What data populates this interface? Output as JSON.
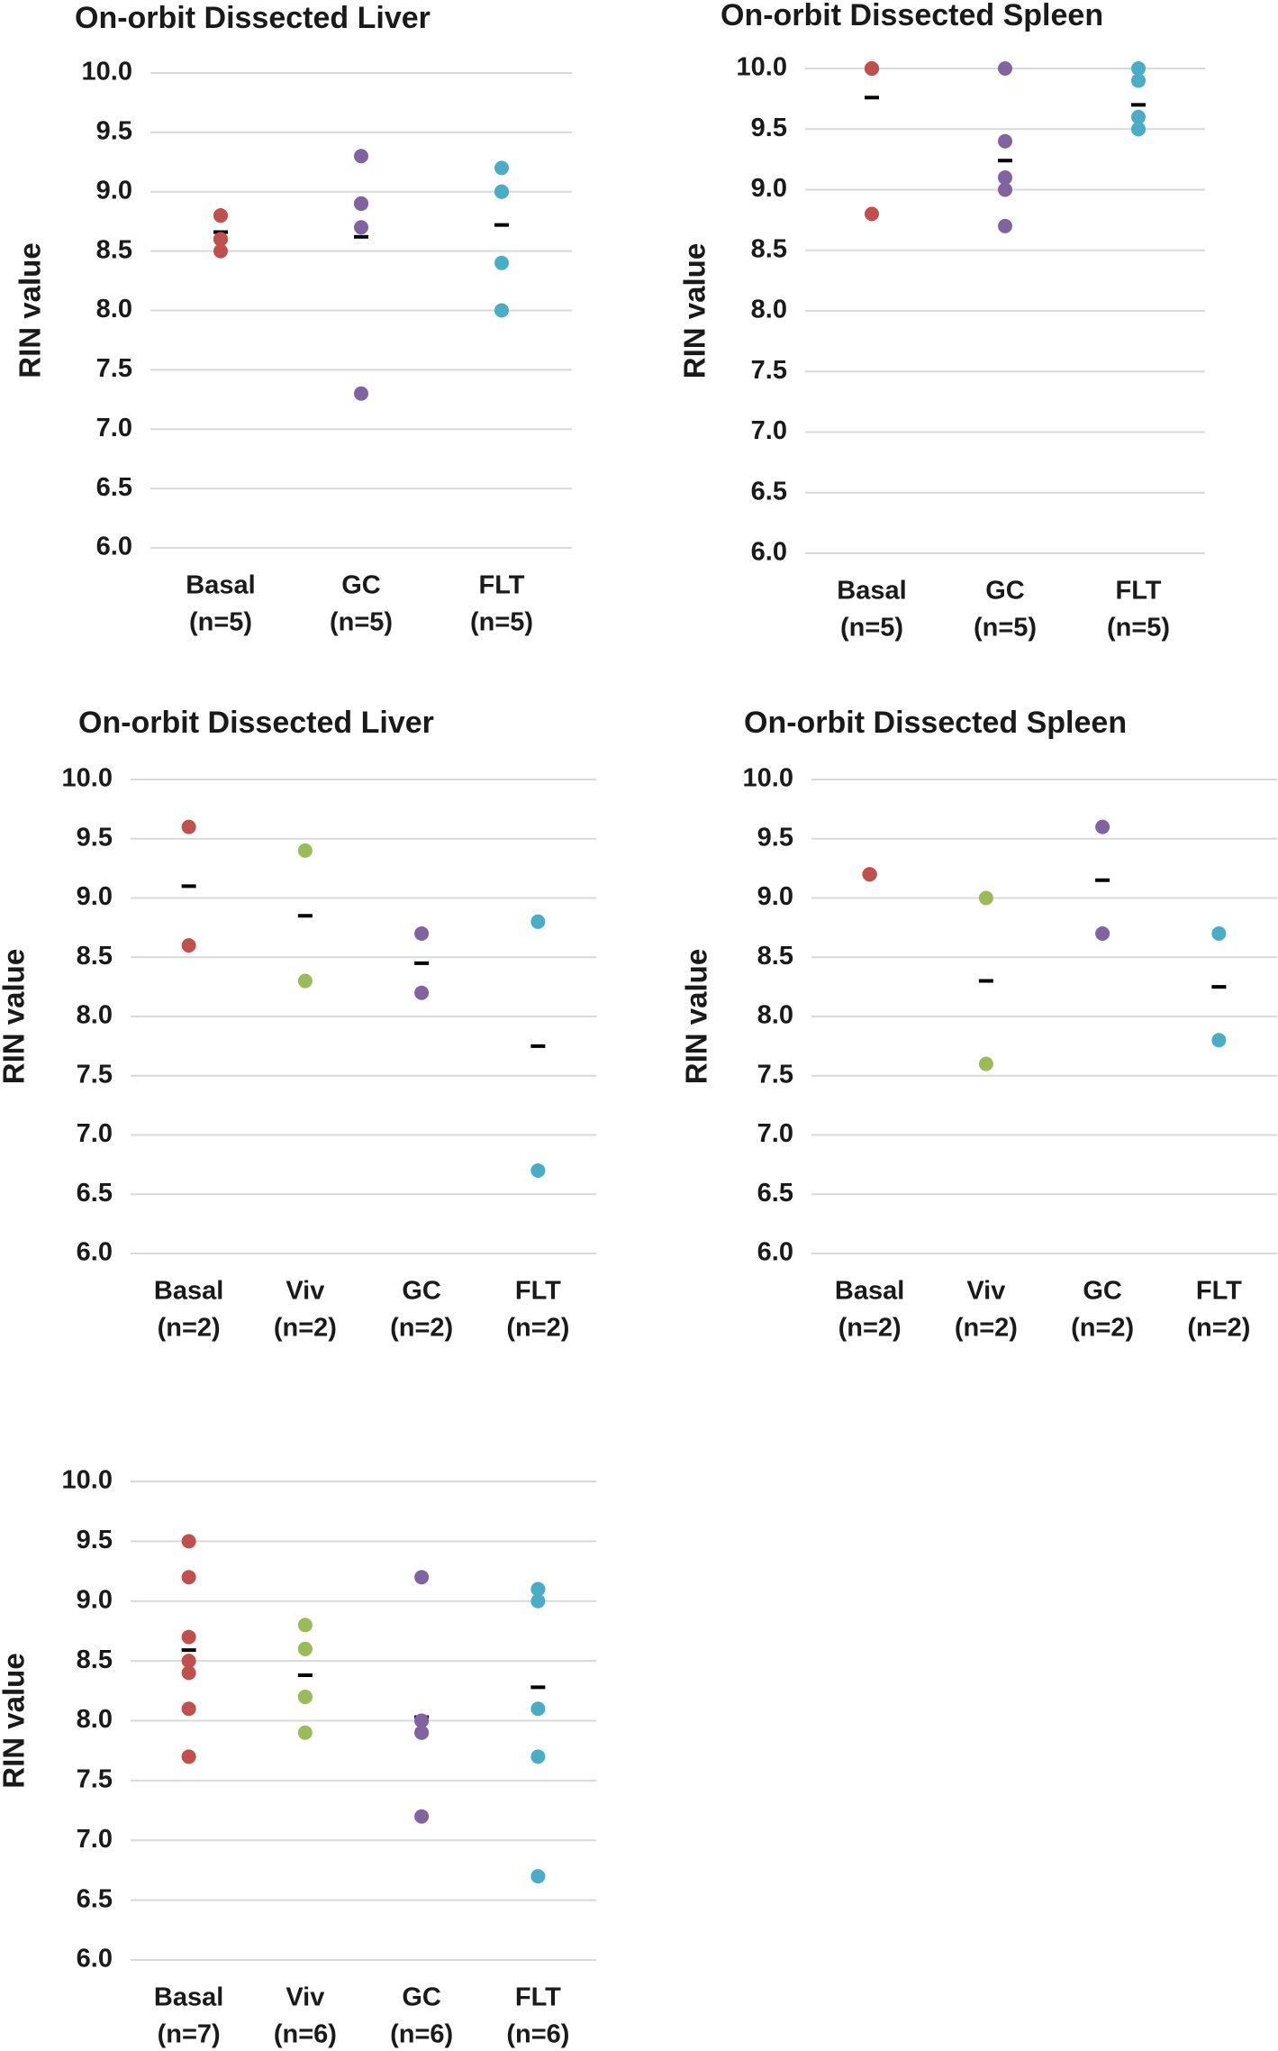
{
  "chart_data": [
    {
      "type": "strip",
      "title": "On-orbit Dissected Liver",
      "y_label": "RIN value",
      "ylim": [
        6.0,
        10.0
      ],
      "yticks": [
        {
          "value": 6.0,
          "label": "6.0"
        },
        6.5,
        {
          "value": 7.0,
          "label": "7.0"
        },
        7.5,
        {
          "value": 8.0,
          "label": "8.0"
        },
        8.5,
        {
          "value": 9.0,
          "label": "9.0"
        },
        9.5,
        {
          "value": 10.0,
          "label": "10.0"
        }
      ],
      "grid": true,
      "groups": [
        {
          "name": "Basal",
          "n_label": "(n=5)",
          "color": "#c0504d",
          "values": [
            8.8,
            8.8,
            8.6,
            8.6,
            8.5
          ],
          "mean": 8.66
        },
        {
          "name": "GC",
          "n_label": "(n=5)",
          "color": "#8064a2",
          "values": [
            9.3,
            8.9,
            8.9,
            8.7,
            7.3
          ],
          "mean": 8.62
        },
        {
          "name": "FLT",
          "n_label": "(n=5)",
          "color": "#4bacc6",
          "values": [
            9.2,
            9.0,
            9.0,
            8.4,
            8.0
          ],
          "mean": 8.72
        }
      ]
    },
    {
      "type": "strip",
      "title": "On-orbit Dissected Spleen",
      "y_label": "RIN value",
      "ylim": [
        6.0,
        10.0
      ],
      "yticks": [
        {
          "value": 6.0,
          "label": "6.0"
        },
        6.5,
        {
          "value": 7.0,
          "label": "7.0"
        },
        7.5,
        {
          "value": 8.0,
          "label": "8.0"
        },
        8.5,
        {
          "value": 9.0,
          "label": "9.0"
        },
        9.5,
        {
          "value": 10.0,
          "label": "10.0"
        }
      ],
      "grid": true,
      "groups": [
        {
          "name": "Basal",
          "n_label": "(n=5)",
          "color": "#c0504d",
          "values": [
            10.0,
            10.0,
            10.0,
            10.0,
            8.8
          ],
          "mean": 9.76
        },
        {
          "name": "GC",
          "n_label": "(n=5)",
          "color": "#8064a2",
          "values": [
            10.0,
            9.4,
            9.1,
            9.0,
            8.7
          ],
          "mean": 9.24
        },
        {
          "name": "FLT",
          "n_label": "(n=5)",
          "color": "#4bacc6",
          "values": [
            10.0,
            9.9,
            9.6,
            9.5,
            9.5
          ],
          "mean": 9.7
        }
      ]
    },
    {
      "type": "strip",
      "title": "On-orbit Dissected Liver",
      "y_label": "RIN value",
      "ylim": [
        6.0,
        10.0
      ],
      "yticks": [
        {
          "value": 6.0,
          "label": "6.0"
        },
        6.5,
        {
          "value": 7.0,
          "label": "7.0"
        },
        7.5,
        {
          "value": 8.0,
          "label": "8.0"
        },
        8.5,
        {
          "value": 9.0,
          "label": "9.0"
        },
        9.5,
        {
          "value": 10.0,
          "label": "10.0"
        }
      ],
      "grid": true,
      "groups": [
        {
          "name": "Basal",
          "n_label": "(n=2)",
          "color": "#c0504d",
          "values": [
            9.6,
            8.6
          ],
          "mean": 9.1
        },
        {
          "name": "Viv",
          "n_label": "(n=2)",
          "color": "#9bbb59",
          "values": [
            9.4,
            8.3
          ],
          "mean": 8.85
        },
        {
          "name": "GC",
          "n_label": "(n=2)",
          "color": "#8064a2",
          "values": [
            8.7,
            8.2
          ],
          "mean": 8.45
        },
        {
          "name": "FLT",
          "n_label": "(n=2)",
          "color": "#4bacc6",
          "values": [
            8.8,
            6.7
          ],
          "mean": 7.75
        }
      ]
    },
    {
      "type": "strip",
      "title": "On-orbit Dissected Spleen",
      "y_label": "RIN value",
      "ylim": [
        6.0,
        10.0
      ],
      "yticks": [
        {
          "value": 6.0,
          "label": "6.0"
        },
        6.5,
        {
          "value": 7.0,
          "label": "7.0"
        },
        7.5,
        {
          "value": 8.0,
          "label": "8.0"
        },
        8.5,
        {
          "value": 9.0,
          "label": "9.0"
        },
        9.5,
        {
          "value": 10.0,
          "label": "10.0"
        }
      ],
      "grid": true,
      "groups": [
        {
          "name": "Basal",
          "n_label": "(n=2)",
          "color": "#c0504d",
          "values": [
            9.2,
            9.2
          ],
          "mean": 9.2
        },
        {
          "name": "Viv",
          "n_label": "(n=2)",
          "color": "#9bbb59",
          "values": [
            9.0,
            7.6
          ],
          "mean": 8.3
        },
        {
          "name": "GC",
          "n_label": "(n=2)",
          "color": "#8064a2",
          "values": [
            9.6,
            8.7
          ],
          "mean": 9.15
        },
        {
          "name": "FLT",
          "n_label": "(n=2)",
          "color": "#4bacc6",
          "values": [
            8.7,
            7.8
          ],
          "mean": 8.25
        }
      ]
    },
    {
      "type": "strip",
      "y_label": "RIN value",
      "ylim": [
        6.0,
        10.0
      ],
      "yticks": [
        {
          "value": 6.0,
          "label": "6.0"
        },
        6.5,
        {
          "value": 7.0,
          "label": "7.0"
        },
        7.5,
        {
          "value": 8.0,
          "label": "8.0"
        },
        8.5,
        {
          "value": 9.0,
          "label": "9.0"
        },
        9.5,
        {
          "value": 10.0,
          "label": "10.0"
        }
      ],
      "grid": true,
      "groups": [
        {
          "name": "Basal",
          "n_label": "(n=7)",
          "color": "#c0504d",
          "values": [
            9.5,
            9.2,
            8.7,
            8.5,
            8.4,
            8.1,
            7.7
          ],
          "mean": 8.59
        },
        {
          "name": "Viv",
          "n_label": "(n=6)",
          "color": "#9bbb59",
          "values": [
            8.8,
            8.6,
            8.6,
            8.2,
            8.2,
            7.9
          ],
          "mean": 8.38
        },
        {
          "name": "GC",
          "n_label": "(n=6)",
          "color": "#8064a2",
          "values": [
            9.2,
            8.0,
            8.0,
            7.9,
            7.9,
            7.2
          ],
          "mean": 8.03
        },
        {
          "name": "FLT",
          "n_label": "(n=6)",
          "color": "#4bacc6",
          "values": [
            9.1,
            9.1,
            9.0,
            8.1,
            7.7,
            6.7
          ],
          "mean": 8.28
        }
      ]
    }
  ]
}
